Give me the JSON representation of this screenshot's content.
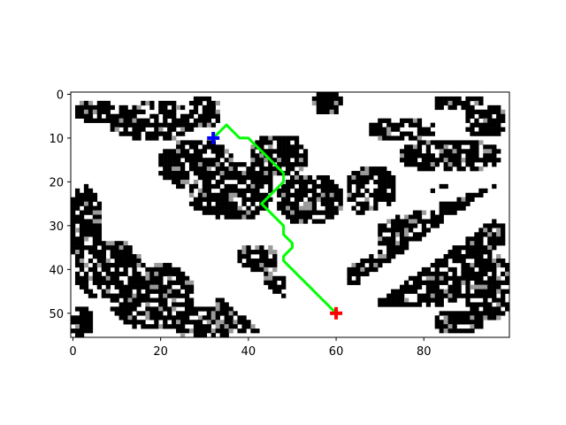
{
  "chart_data": {
    "type": "heatmap",
    "title": "",
    "xlabel": "",
    "ylabel": "",
    "grid_shape": [
      56,
      100
    ],
    "xlim": [
      0,
      100
    ],
    "ylim": [
      56,
      0
    ],
    "x_ticks": [
      "0",
      "20",
      "40",
      "60",
      "80"
    ],
    "y_ticks": [
      "0",
      "10",
      "20",
      "30",
      "40",
      "50"
    ],
    "grid": false,
    "colormap": "gray",
    "start": {
      "x": 32,
      "y": 10,
      "marker": "plus",
      "color": "#0000ff"
    },
    "goal": {
      "x": 60,
      "y": 50,
      "marker": "plus",
      "color": "#ff0000"
    },
    "path": {
      "color": "#00ff00",
      "points": [
        [
          32,
          10
        ],
        [
          33,
          9
        ],
        [
          34,
          8
        ],
        [
          35,
          7
        ],
        [
          36,
          8
        ],
        [
          37,
          9
        ],
        [
          38,
          10
        ],
        [
          39,
          10
        ],
        [
          40,
          10
        ],
        [
          41,
          11
        ],
        [
          42,
          12
        ],
        [
          43,
          13
        ],
        [
          44,
          14
        ],
        [
          45,
          15
        ],
        [
          46,
          16
        ],
        [
          47,
          17
        ],
        [
          48,
          18
        ],
        [
          48,
          19
        ],
        [
          48,
          20
        ],
        [
          47,
          21
        ],
        [
          46,
          22
        ],
        [
          45,
          23
        ],
        [
          44,
          24
        ],
        [
          43,
          25
        ],
        [
          44,
          26
        ],
        [
          45,
          27
        ],
        [
          46,
          28
        ],
        [
          47,
          29
        ],
        [
          48,
          30
        ],
        [
          48,
          31
        ],
        [
          48,
          32
        ],
        [
          49,
          33
        ],
        [
          50,
          34
        ],
        [
          50,
          35
        ],
        [
          49,
          36
        ],
        [
          48,
          37
        ],
        [
          48,
          38
        ],
        [
          49,
          39
        ],
        [
          50,
          40
        ],
        [
          51,
          41
        ],
        [
          52,
          42
        ],
        [
          53,
          43
        ],
        [
          54,
          44
        ],
        [
          55,
          45
        ],
        [
          56,
          46
        ],
        [
          57,
          47
        ],
        [
          58,
          48
        ],
        [
          59,
          49
        ],
        [
          60,
          50
        ]
      ]
    },
    "obstacle_blobs": [
      {
        "cx": 5,
        "cy": 4,
        "rx": 5,
        "ry": 3
      },
      {
        "cx": 18,
        "cy": 6,
        "rx": 10,
        "ry": 5
      },
      {
        "cx": 30,
        "cy": 4,
        "rx": 4,
        "ry": 4
      },
      {
        "cx": 28,
        "cy": 16,
        "rx": 9,
        "ry": 6
      },
      {
        "cx": 36,
        "cy": 22,
        "rx": 10,
        "ry": 7
      },
      {
        "cx": 47,
        "cy": 14,
        "rx": 7,
        "ry": 5
      },
      {
        "cx": 54,
        "cy": 24,
        "rx": 8,
        "ry": 6
      },
      {
        "cx": 58,
        "cy": 2,
        "rx": 4,
        "ry": 3
      },
      {
        "cx": 75,
        "cy": 8,
        "rx": 8,
        "ry": 3
      },
      {
        "cx": 88,
        "cy": 2,
        "rx": 6,
        "ry": 2
      },
      {
        "cx": 86,
        "cy": 14,
        "rx": 12,
        "ry": 4
      },
      {
        "cx": 94,
        "cy": 6,
        "rx": 5,
        "ry": 4
      },
      {
        "cx": 68,
        "cy": 22,
        "rx": 6,
        "ry": 6
      },
      {
        "cx": 90,
        "cy": 24,
        "rx": 10,
        "ry": 4
      },
      {
        "cx": 84,
        "cy": 32,
        "rx": 15,
        "ry": 6
      },
      {
        "cx": 77,
        "cy": 42,
        "rx": 15,
        "ry": 7
      },
      {
        "cx": 95,
        "cy": 44,
        "rx": 6,
        "ry": 8
      },
      {
        "cx": 88,
        "cy": 52,
        "rx": 6,
        "ry": 3
      },
      {
        "cx": 3,
        "cy": 30,
        "rx": 4,
        "ry": 10
      },
      {
        "cx": 8,
        "cy": 40,
        "rx": 8,
        "ry": 7
      },
      {
        "cx": 18,
        "cy": 46,
        "rx": 10,
        "ry": 8
      },
      {
        "cx": 30,
        "cy": 52,
        "rx": 8,
        "ry": 4
      },
      {
        "cx": 36,
        "cy": 48,
        "rx": 4,
        "ry": 4
      },
      {
        "cx": 2,
        "cy": 52,
        "rx": 3,
        "ry": 4
      },
      {
        "cx": 42,
        "cy": 38,
        "rx": 5,
        "ry": 4
      },
      {
        "cx": 46,
        "cy": 44,
        "rx": 3,
        "ry": 3
      },
      {
        "cx": 40,
        "cy": 52,
        "rx": 4,
        "ry": 3
      }
    ],
    "free_corridors": [
      {
        "type": "line",
        "x1": 0,
        "y1": 12,
        "x2": 52,
        "y2": 56,
        "width": 9
      },
      {
        "type": "line",
        "x1": 52,
        "y1": 56,
        "x2": 100,
        "y2": 22,
        "width": 6
      },
      {
        "type": "line",
        "x1": 62,
        "y1": 30,
        "x2": 100,
        "y2": 18,
        "width": 3
      }
    ]
  }
}
